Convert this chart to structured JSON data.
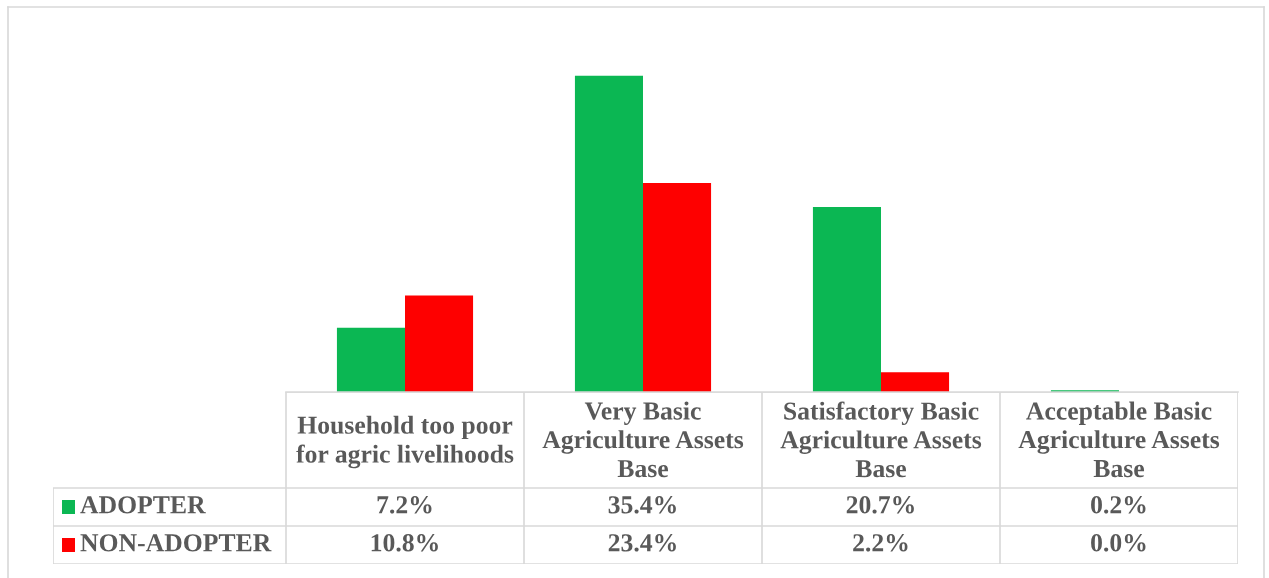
{
  "chart_data": {
    "type": "bar",
    "categories": [
      "Household too poor for agric livelihoods",
      "Very Basic Agriculture Assets Base",
      "Satisfactory Basic Agriculture Assets Base",
      "Acceptable Basic Agriculture Assets Base"
    ],
    "series": [
      {
        "name": "ADOPTER",
        "color": "#0bb753",
        "values": [
          7.2,
          35.4,
          20.7,
          0.2
        ],
        "value_labels": [
          "7.2%",
          "35.4%",
          "20.7%",
          "0.2%"
        ]
      },
      {
        "name": "NON-ADOPTER",
        "color": "#fe0000",
        "values": [
          10.8,
          23.4,
          2.2,
          0.0
        ],
        "value_labels": [
          "10.8%",
          "23.4%",
          "2.2%",
          "0.0%"
        ]
      }
    ],
    "legend": "bottom left"
  }
}
